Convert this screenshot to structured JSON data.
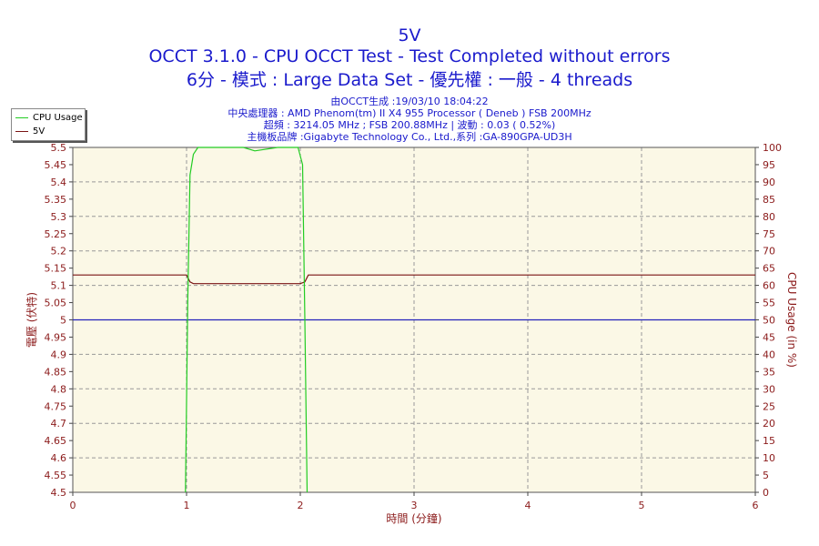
{
  "header": {
    "title": "5V",
    "subtitle1": "OCCT 3.1.0 - CPU OCCT Test - Test Completed without errors",
    "subtitle2": "6分 - 模式 : Large Data Set - 優先權 : 一般 - 4 threads",
    "info1": "由OCCT生成 :19/03/10 18:04:22",
    "info2": "中央處理器 : AMD Phenom(tm) II X4 955 Processor ( Deneb ) FSB 200MHz",
    "info3": "超頻 : 3214.05 MHz ; FSB 200.88MHz | 波動 : 0.03 ( 0.52%)",
    "info4": "主機板品牌 :Gigabyte Technology Co., Ltd.,系列 :GA-890GPA-UD3H"
  },
  "legend": {
    "items": [
      {
        "label": "CPU Usage",
        "color": "#22cc22"
      },
      {
        "label": "5V",
        "color": "#7a1414"
      }
    ]
  },
  "chart_data": {
    "type": "line",
    "xlabel": "時間 (分鐘)",
    "ylabel": "電壓 (伏特)",
    "y2label": "CPU Usage (in %)",
    "xlim": [
      0,
      6
    ],
    "ylim": [
      4.5,
      5.5
    ],
    "y2lim": [
      0,
      100
    ],
    "x_ticks": [
      "0",
      "1",
      "2",
      "3",
      "4",
      "5",
      "6"
    ],
    "y_ticks": [
      "4.5",
      "4.55",
      "4.6",
      "4.65",
      "4.7",
      "4.75",
      "4.8",
      "4.85",
      "4.9",
      "4.95",
      "5",
      "5.05",
      "5.1",
      "5.15",
      "5.2",
      "5.25",
      "5.3",
      "5.35",
      "5.4",
      "5.45",
      "5.5"
    ],
    "y2_ticks": [
      "0",
      "5",
      "10",
      "15",
      "20",
      "25",
      "30",
      "35",
      "40",
      "45",
      "50",
      "55",
      "60",
      "65",
      "70",
      "75",
      "80",
      "85",
      "90",
      "95",
      "100"
    ],
    "grid": true,
    "colors": {
      "axis_text": "#8b1a1a",
      "plot_bg": "#fbf8e6",
      "grid": "#999999",
      "reference": "#2222bb"
    },
    "reference_line": {
      "y": 5.0
    },
    "series": [
      {
        "name": "5V",
        "axis": "left",
        "color": "#7a1414",
        "x": [
          0,
          1.0,
          1.03,
          1.06,
          2.0,
          2.04,
          2.07,
          6
        ],
        "values": [
          5.13,
          5.13,
          5.11,
          5.105,
          5.105,
          5.11,
          5.13,
          5.13
        ]
      },
      {
        "name": "CPU Usage",
        "axis": "right",
        "color": "#22cc22",
        "x": [
          0.99,
          1.01,
          1.03,
          1.06,
          1.1,
          1.5,
          1.6,
          1.8,
          1.98,
          2.02,
          2.04,
          2.06
        ],
        "values": [
          0,
          55,
          92,
          98,
          100,
          100,
          99,
          100,
          100,
          95,
          50,
          0
        ]
      }
    ]
  }
}
